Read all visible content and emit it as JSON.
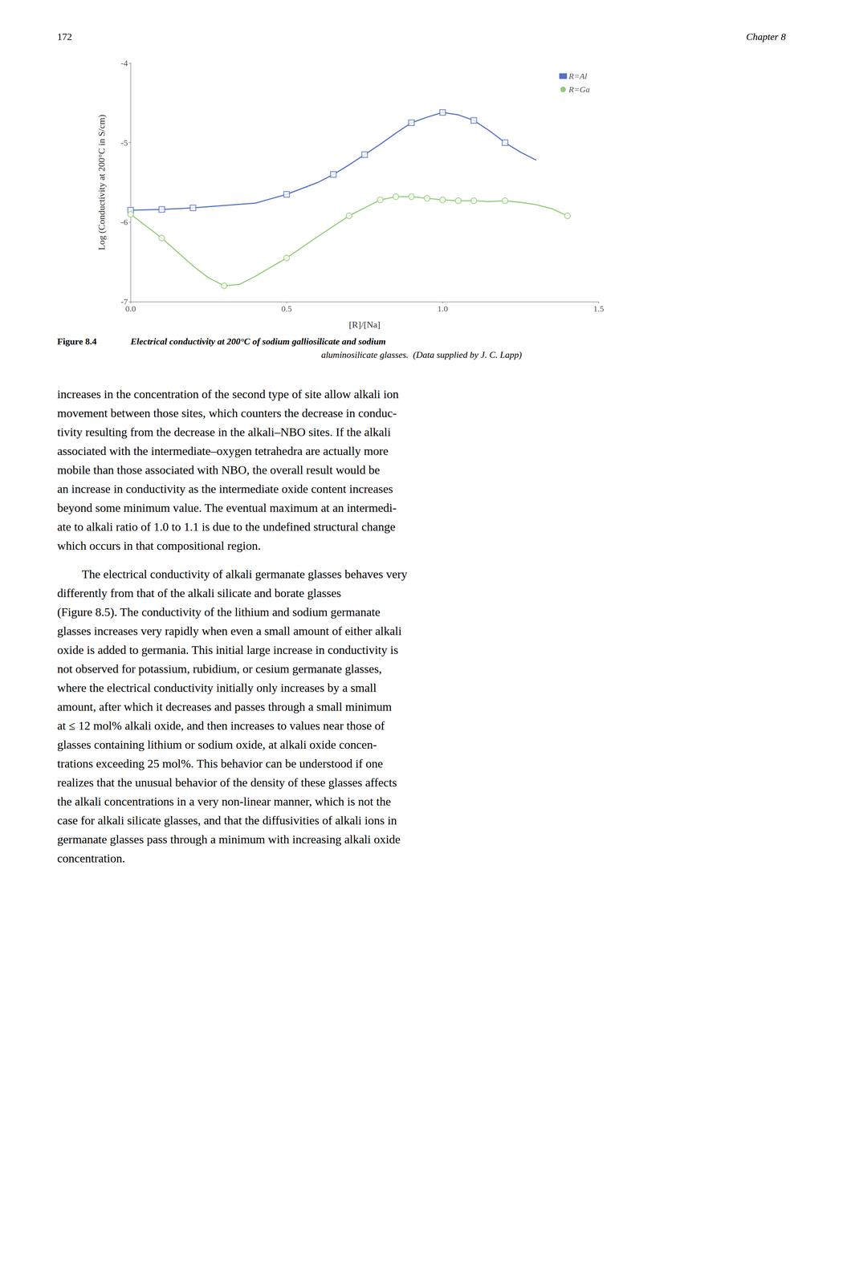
{
  "page_header": {
    "page_number": "172",
    "chapter": "Chapter 8"
  },
  "chart_data": {
    "type": "line",
    "title": "Figure 8.4",
    "subtitle": [
      "Electrical conductivity at 200°C of sodium galliosilicate and sodium",
      "aluminosilicate glasses.  (Data supplied by J. C. Lapp)"
    ],
    "xlabel": "[R]/[Na]",
    "ylabel": "Log (Conductivity at 200°C in S/cm)",
    "xlim": [
      0.0,
      1.5
    ],
    "ylim": [
      -7.0,
      -4.0
    ],
    "xticks": [
      {
        "value": 0.0,
        "label": "0.0"
      },
      0.5,
      {
        "value": 1.0,
        "label": "1.0"
      },
      1.5
    ],
    "yticks": [
      -7,
      -6,
      -5,
      -4
    ],
    "grid": false,
    "legend": "upper right",
    "series": [
      {
        "name": "R=Al",
        "marker": "square",
        "x": [
          0.0,
          0.1,
          0.2,
          0.3,
          0.4,
          0.5,
          0.6,
          0.65,
          0.7,
          0.75,
          0.8,
          0.85,
          0.9,
          0.95,
          1.0,
          1.05,
          1.1,
          1.15,
          1.2,
          1.25,
          1.3
        ],
        "values": [
          -5.85,
          -5.84,
          -5.82,
          -5.79,
          -5.76,
          -5.65,
          -5.5,
          -5.4,
          -5.28,
          -5.15,
          -5.02,
          -4.88,
          -4.75,
          -4.68,
          -4.62,
          -4.65,
          -4.72,
          -4.85,
          -5.0,
          -5.12,
          -5.22
        ],
        "marker_x": [
          0.0,
          0.1,
          0.2,
          0.5,
          0.65,
          0.75,
          0.9,
          1.0,
          1.1,
          1.2
        ],
        "marker_values": [
          -5.85,
          -5.84,
          -5.82,
          -5.65,
          -5.4,
          -5.15,
          -4.75,
          -4.62,
          -4.72,
          -5.0
        ]
      },
      {
        "name": "R=Ga",
        "marker": "circle",
        "x": [
          0.0,
          0.1,
          0.2,
          0.25,
          0.3,
          0.35,
          0.4,
          0.5,
          0.6,
          0.65,
          0.7,
          0.75,
          0.8,
          0.85,
          0.9,
          0.95,
          1.0,
          1.05,
          1.1,
          1.15,
          1.2,
          1.25,
          1.3,
          1.35,
          1.4
        ],
        "values": [
          -5.9,
          -6.2,
          -6.55,
          -6.7,
          -6.8,
          -6.78,
          -6.68,
          -6.45,
          -6.18,
          -6.05,
          -5.92,
          -5.82,
          -5.72,
          -5.68,
          -5.68,
          -5.7,
          -5.72,
          -5.73,
          -5.73,
          -5.74,
          -5.73,
          -5.75,
          -5.78,
          -5.83,
          -5.92
        ],
        "marker_x": [
          0.0,
          0.1,
          0.3,
          0.5,
          0.7,
          0.8,
          0.85,
          0.9,
          0.95,
          1.0,
          1.05,
          1.1,
          1.2,
          1.4
        ],
        "marker_values": [
          -5.9,
          -6.2,
          -6.8,
          -6.45,
          -5.92,
          -5.72,
          -5.68,
          -5.68,
          -5.7,
          -5.72,
          -5.73,
          -5.73,
          -5.73,
          -5.92
        ]
      }
    ]
  },
  "body_text": [
    [
      "increases in the concentration of the second type of site allow alkali ion",
      "movement between those sites, which counters the decrease in conduc-",
      "tivity resulting from the decrease in the alkali–NBO sites. If the alkali",
      "associated with the intermediate–oxygen tetrahedra are actually more",
      "mobile than those associated with NBO, the overall result would be",
      "an increase in conductivity as the intermediate oxide content increases",
      "beyond some minimum value. The eventual maximum at an intermedi-",
      "ate to alkali ratio of 1.0 to 1.1 is due to the undefined structural change",
      "which occurs in that compositional region."
    ],
    [
      "The electrical conductivity of alkali germanate glasses behaves very",
      "differently from that of the alkali silicate and borate glasses",
      "(Figure 8.5). The conductivity of the lithium and sodium germanate",
      "glasses increases very rapidly when even a small amount of either alkali",
      "oxide is added to germania. This initial large increase in conductivity is",
      "not observed for potassium, rubidium, or cesium germanate glasses,",
      "where the electrical conductivity initially only increases by a small",
      "amount, after which it decreases and passes through a small minimum",
      "at ≤ 12 mol% alkali oxide, and then increases to values near those of",
      "glasses containing lithium or sodium oxide, at alkali oxide concen-",
      "trations exceeding 25 mol%. This behavior can be understood if one",
      "realizes that the unusual behavior of the density of these glasses affects",
      "the alkali concentrations in a very non-linear manner, which is not the",
      "case for alkali silicate glasses, and that the diffusivities of alkali ions in",
      "germanate glasses pass through a minimum with increasing alkali oxide",
      "concentration."
    ]
  ]
}
